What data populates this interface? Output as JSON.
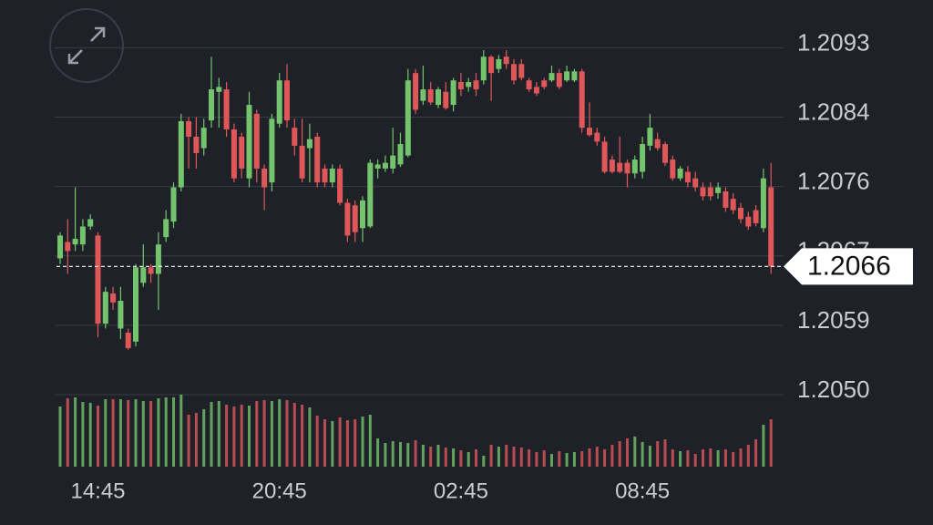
{
  "chart_data": {
    "type": "candlestick",
    "categories": [
      null,
      null,
      null,
      null,
      null,
      "14:45",
      null,
      null,
      null,
      null,
      null,
      null,
      null,
      null,
      null,
      null,
      null,
      null,
      null,
      null,
      null,
      null,
      null,
      null,
      null,
      null,
      null,
      null,
      null,
      "20:45",
      null,
      null,
      null,
      null,
      null,
      null,
      null,
      null,
      null,
      null,
      null,
      null,
      null,
      null,
      null,
      null,
      null,
      null,
      null,
      null,
      null,
      null,
      null,
      "02:45",
      null,
      null,
      null,
      null,
      null,
      null,
      null,
      null,
      null,
      null,
      null,
      null,
      null,
      null,
      null,
      null,
      null,
      null,
      null,
      null,
      null,
      null,
      null,
      "08:45",
      null,
      null,
      null,
      null,
      null,
      null,
      null,
      null,
      null,
      null,
      null,
      null,
      null,
      null,
      null,
      null,
      null
    ],
    "open": [
      1.2067,
      1.2069,
      1.20687,
      1.20687,
      1.20709,
      1.20698,
      1.2059,
      1.20627,
      1.20584,
      1.20579,
      1.20568,
      1.2064,
      1.20659,
      1.20651,
      1.20696,
      1.20715,
      1.20757,
      1.20838,
      1.20819,
      1.20805,
      1.20839,
      1.20874,
      1.20877,
      1.20828,
      1.20819,
      1.20768,
      1.20847,
      1.2078,
      1.20763,
      1.20835,
      1.20888,
      1.2083,
      1.20808,
      1.20805,
      1.20819,
      1.2078,
      1.20763,
      1.2078,
      1.20738,
      1.20735,
      1.20707,
      1.20709,
      1.2078,
      1.2078,
      1.2078,
      1.20785,
      1.20796,
      1.20897,
      1.20863,
      1.20877,
      1.20858,
      1.20874,
      1.20858,
      1.20886,
      1.2088,
      1.20888,
      1.20888,
      1.20917,
      1.20902,
      1.20917,
      1.20908,
      1.20908,
      1.20888,
      1.2088,
      1.20888,
      1.20888,
      1.20897,
      1.20888,
      1.20888,
      1.20899,
      1.2083,
      1.20824,
      1.20813,
      1.20791,
      1.20787,
      1.20787,
      1.20774,
      1.20776,
      1.20808,
      1.20816,
      1.2081,
      1.20791,
      1.20768,
      1.20776,
      1.20768,
      1.20757,
      1.20757,
      1.2075,
      1.20752,
      1.20743,
      1.20732,
      1.20721,
      1.20729,
      1.20707,
      1.20757
    ],
    "high": [
      1.20702,
      1.20718,
      1.20757,
      1.20718,
      1.20724,
      1.20702,
      1.20635,
      1.20635,
      1.20635,
      1.20584,
      1.20663,
      1.20687,
      1.20663,
      1.20702,
      1.20729,
      1.20763,
      1.20847,
      1.20843,
      1.20843,
      1.20841,
      1.20917,
      1.20891,
      1.20886,
      1.20835,
      1.20824,
      1.20874,
      1.20852,
      1.20785,
      1.20847,
      1.20897,
      1.20908,
      1.20841,
      1.20841,
      1.20835,
      1.20824,
      1.20785,
      1.20785,
      1.20785,
      1.20743,
      1.20741,
      1.20746,
      1.20791,
      1.20791,
      1.20796,
      1.2083,
      1.20824,
      1.20902,
      1.20902,
      1.20906,
      1.20886,
      1.2088,
      1.20886,
      1.20891,
      1.20897,
      1.20891,
      1.20897,
      1.20925,
      1.20919,
      1.20919,
      1.20925,
      1.20914,
      1.20914,
      1.20891,
      1.20886,
      1.20891,
      1.20906,
      1.20902,
      1.20906,
      1.20902,
      1.20902,
      1.20861,
      1.2083,
      1.20819,
      1.20796,
      1.20819,
      1.20791,
      1.20796,
      1.20819,
      1.20847,
      1.20824,
      1.20813,
      1.20796,
      1.20783,
      1.20783,
      1.20776,
      1.20763,
      1.20763,
      1.20763,
      1.20757,
      1.2075,
      1.20738,
      1.20727,
      1.20735,
      1.2078,
      1.20787
    ],
    "low": [
      1.20663,
      1.20651,
      1.20679,
      1.20679,
      1.20705,
      1.20573,
      1.20584,
      1.20607,
      1.20571,
      1.20558,
      1.20562,
      1.20635,
      1.2064,
      1.20607,
      1.2069,
      1.20707,
      1.20752,
      1.2078,
      1.2078,
      1.20796,
      1.2083,
      1.2083,
      1.20819,
      1.20763,
      1.20768,
      1.20757,
      1.20763,
      1.20729,
      1.20752,
      1.2083,
      1.2083,
      1.20796,
      1.20763,
      1.20763,
      1.20757,
      1.20757,
      1.20757,
      1.20735,
      1.2069,
      1.2069,
      1.2069,
      1.20707,
      1.20768,
      1.20776,
      1.20774,
      1.20782,
      1.20794,
      1.20847,
      1.20858,
      1.20858,
      1.20854,
      1.20852,
      1.2085,
      1.20869,
      1.20874,
      1.20869,
      1.20883,
      1.20863,
      1.20897,
      1.20902,
      1.20883,
      1.20888,
      1.20874,
      1.20869,
      1.20877,
      1.20886,
      1.20877,
      1.20886,
      1.20886,
      1.20824,
      1.20819,
      1.20808,
      1.20774,
      1.20774,
      1.20774,
      1.20757,
      1.20768,
      1.20768,
      1.20802,
      1.20802,
      1.20783,
      1.20765,
      1.20765,
      1.20757,
      1.20752,
      1.20741,
      1.20741,
      1.20743,
      1.20727,
      1.20724,
      1.20713,
      1.20705,
      1.20709,
      1.20702,
      1.20651
    ],
    "close": [
      1.20698,
      1.20679,
      1.20694,
      1.20709,
      1.20718,
      1.2059,
      1.20629,
      1.20616,
      1.20618,
      1.2056,
      1.20659,
      1.20659,
      1.20651,
      1.20687,
      1.20718,
      1.20757,
      1.20838,
      1.20819,
      1.20799,
      1.2083,
      1.20877,
      1.2088,
      1.20828,
      1.20768,
      1.2078,
      1.20858,
      1.2078,
      1.20757,
      1.20841,
      1.20888,
      1.20839,
      1.20808,
      1.20768,
      1.20816,
      1.20763,
      1.20763,
      1.2078,
      1.20738,
      1.20698,
      1.20702,
      1.20741,
      1.20787,
      1.20785,
      1.20787,
      1.20796,
      1.2081,
      1.20888,
      1.20852,
      1.20877,
      1.20861,
      1.20877,
      1.20854,
      1.20888,
      1.20877,
      1.20886,
      1.20877,
      1.20917,
      1.20897,
      1.20914,
      1.20908,
      1.20888,
      1.20891,
      1.20877,
      1.20872,
      1.2088,
      1.20897,
      1.2088,
      1.20899,
      1.20899,
      1.2083,
      1.20821,
      1.20813,
      1.20776,
      1.20776,
      1.20776,
      1.20774,
      1.20791,
      1.2081,
      1.2083,
      1.20805,
      1.20787,
      1.20768,
      1.2078,
      1.20763,
      1.20757,
      1.20746,
      1.20746,
      1.20757,
      1.20732,
      1.20729,
      1.20718,
      1.20709,
      1.20713,
      1.20768,
      1.2066
    ],
    "volume": [
      66,
      75,
      76,
      71,
      70,
      67,
      74,
      74,
      74,
      73,
      74,
      72,
      72,
      75,
      76,
      76,
      79,
      57,
      59,
      63,
      71,
      72,
      68,
      66,
      68,
      67,
      72,
      73,
      72,
      74,
      73,
      70,
      68,
      65,
      56,
      52,
      50,
      54,
      51,
      52,
      55,
      57,
      31,
      26,
      28,
      27,
      26,
      29,
      24,
      22,
      24,
      21,
      20,
      18,
      16,
      19,
      12,
      24,
      22,
      24,
      22,
      21,
      19,
      16,
      18,
      14,
      17,
      15,
      16,
      17,
      20,
      22,
      19,
      24,
      28,
      31,
      33,
      27,
      23,
      28,
      30,
      19,
      17,
      18,
      14,
      19,
      20,
      18,
      19,
      16,
      20,
      24,
      30,
      46,
      52
    ],
    "up_color": "#74c46e",
    "down_color": "#e0575a",
    "ylim": [
      1.20503,
      1.20953
    ],
    "yticks": [
      {
        "value": 1.20928,
        "label": "1.2093"
      },
      {
        "value": 1.20843,
        "label": "1.2084"
      },
      {
        "value": 1.20758,
        "label": "1.2076"
      },
      {
        "value": 1.20673,
        "label": "1.2067"
      },
      {
        "value": 1.20588,
        "label": "1.2059"
      },
      {
        "value": 1.20503,
        "label": "1.2050"
      }
    ],
    "grid": true,
    "current_price": 1.2066
  }
}
